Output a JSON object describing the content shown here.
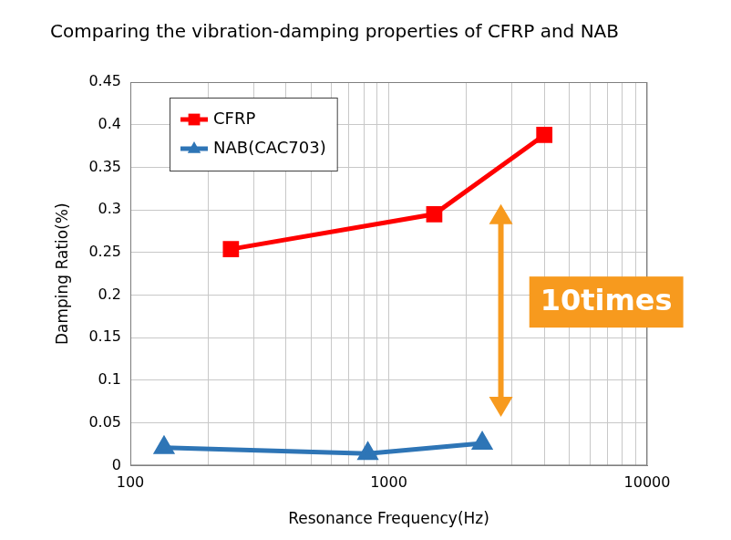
{
  "chart_data": {
    "type": "line",
    "title": "Comparing the vibration-damping properties of CFRP and NAB",
    "x_label": "Resonance Frequency(Hz)",
    "y_label": "Damping Ratio(%)",
    "annotations": [
      "10times"
    ],
    "log": "x",
    "grid": true,
    "legend": "upper left",
    "xlim": [
      100,
      10000
    ],
    "xticks": [
      100,
      1000,
      10000
    ],
    "ylim": [
      0,
      0.45
    ],
    "yticks": [
      0,
      0.05,
      0.1,
      0.15,
      0.2,
      0.25,
      0.3,
      0.35,
      0.4,
      0.45
    ],
    "series": [
      {
        "name": "CFRP",
        "color": "#ff0000",
        "marker": "square",
        "x": [
          245,
          1500,
          4000
        ],
        "values": [
          0.254,
          0.295,
          0.388
        ]
      },
      {
        "name": "NAB(CAC703)",
        "color": "#2e75b6",
        "marker": "triangle",
        "x": [
          135,
          830,
          2300
        ],
        "values": [
          0.021,
          0.014,
          0.026
        ]
      }
    ]
  }
}
